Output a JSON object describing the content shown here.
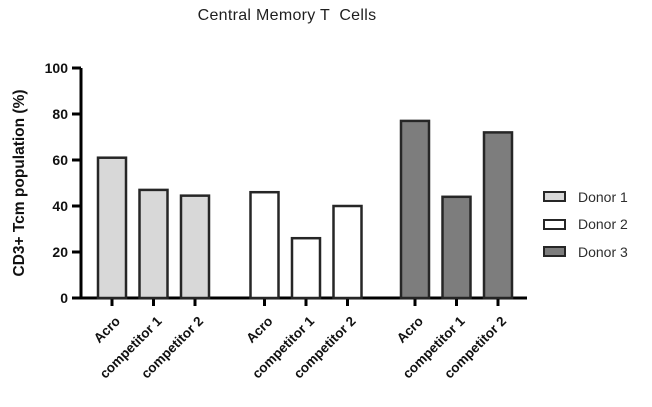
{
  "window": {
    "background": "#ffffff"
  },
  "chart_data": {
    "type": "bar",
    "title": "Central Memory T  Cells",
    "ylabel": "CD3+ Tcm population (%)",
    "xlabel": "",
    "ylim": [
      0,
      100
    ],
    "yticks": [
      0,
      20,
      40,
      60,
      80,
      100
    ],
    "categories": [
      "Acro",
      "competitor 1",
      "competitor 2"
    ],
    "series": [
      {
        "name": "Donor 1",
        "fill": "#d8d8d8",
        "values": [
          61,
          47,
          44.5
        ]
      },
      {
        "name": "Donor 2",
        "fill": "#ffffff",
        "values": [
          46,
          26,
          40
        ]
      },
      {
        "name": "Donor 3",
        "fill": "#7d7d7d",
        "values": [
          77,
          44,
          72
        ]
      }
    ],
    "legend_position": "right",
    "grid": false,
    "bar_border_color": "#262626",
    "axis_color": "#000000",
    "text_color": "#111111"
  }
}
